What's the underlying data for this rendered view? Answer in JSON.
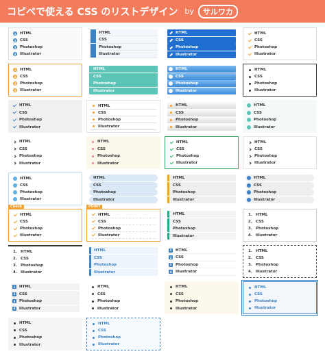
{
  "header": {
    "title": "コピペで使える CSS のリストデザイン",
    "by": "by",
    "logo": "サルワカ"
  },
  "items": [
    "HTML",
    "CSS",
    "Photoshop",
    "Illustrator"
  ],
  "numbers": [
    "1",
    "2",
    "3",
    "4"
  ],
  "numbered": [
    "1.",
    "2.",
    "3.",
    "4."
  ],
  "labels": {
    "check": "Check",
    "point": "POINT"
  }
}
